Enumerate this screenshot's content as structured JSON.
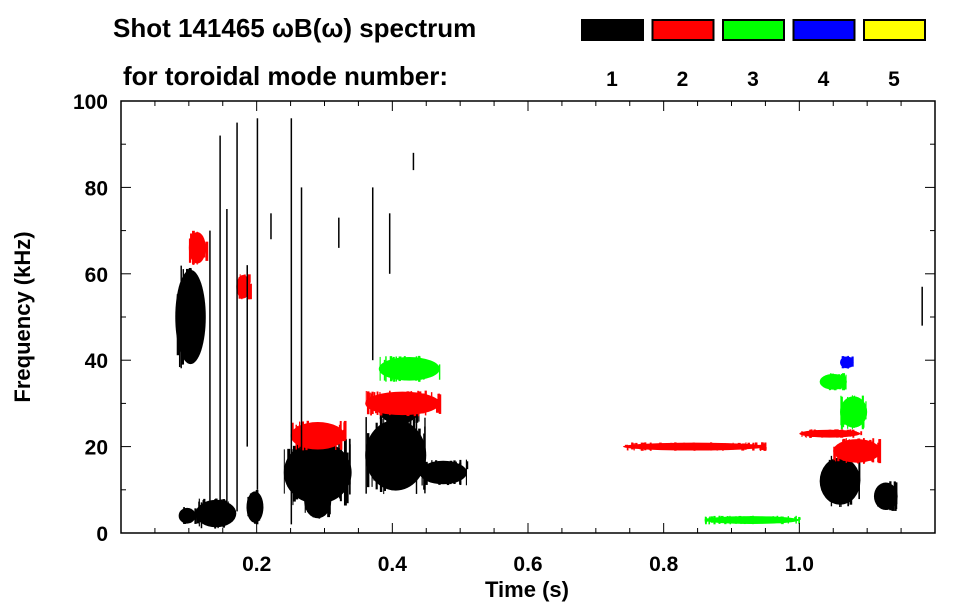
{
  "chart_data": {
    "type": "heatmap",
    "title_line1": "Shot 141465 ωB(ω) spectrum",
    "title_line2": "for toroidal mode number:",
    "xlabel": "Time (s)",
    "ylabel": "Frequency (kHz)",
    "xlim": [
      0,
      1.2
    ],
    "ylim": [
      0,
      100
    ],
    "xticks": [
      0.2,
      0.4,
      0.6,
      0.8,
      1.0
    ],
    "xtick_labels": [
      "0.2",
      "0.4",
      "0.6",
      "0.8",
      "1.0"
    ],
    "yticks": [
      0,
      20,
      40,
      60,
      80,
      100
    ],
    "ytick_labels": [
      "0",
      "20",
      "40",
      "60",
      "80",
      "100"
    ],
    "legend": [
      {
        "label": "1",
        "color": "#000000"
      },
      {
        "label": "2",
        "color": "#ff0000"
      },
      {
        "label": "3",
        "color": "#00ff00"
      },
      {
        "label": "4",
        "color": "#0000ff"
      },
      {
        "label": "5",
        "color": "#ffff00"
      }
    ],
    "regions": [
      {
        "mode": 1,
        "t0": 0.08,
        "t1": 0.125,
        "f0": 38,
        "f1": 62
      },
      {
        "mode": 1,
        "t0": 0.085,
        "t1": 0.11,
        "f0": 2,
        "f1": 6
      },
      {
        "mode": 1,
        "t0": 0.11,
        "t1": 0.17,
        "f0": 1,
        "f1": 8
      },
      {
        "mode": 1,
        "t0": 0.185,
        "t1": 0.21,
        "f0": 2,
        "f1": 10
      },
      {
        "mode": 1,
        "t0": 0.24,
        "t1": 0.34,
        "f0": 6,
        "f1": 22
      },
      {
        "mode": 1,
        "t0": 0.27,
        "t1": 0.31,
        "f0": 3,
        "f1": 12
      },
      {
        "mode": 1,
        "t0": 0.36,
        "t1": 0.45,
        "f0": 9,
        "f1": 27
      },
      {
        "mode": 1,
        "t0": 0.44,
        "t1": 0.51,
        "f0": 11,
        "f1": 17
      },
      {
        "mode": 1,
        "t0": 0.38,
        "t1": 0.44,
        "f0": 25,
        "f1": 32
      },
      {
        "mode": 1,
        "t0": 1.03,
        "t1": 1.09,
        "f0": 6,
        "f1": 18
      },
      {
        "mode": 1,
        "t0": 1.11,
        "t1": 1.145,
        "f0": 5,
        "f1": 12
      },
      {
        "mode": 2,
        "t0": 0.1,
        "t1": 0.125,
        "f0": 62,
        "f1": 70
      },
      {
        "mode": 2,
        "t0": 0.17,
        "t1": 0.19,
        "f0": 54,
        "f1": 60
      },
      {
        "mode": 2,
        "t0": 0.25,
        "t1": 0.33,
        "f0": 19,
        "f1": 26
      },
      {
        "mode": 2,
        "t0": 0.36,
        "t1": 0.47,
        "f0": 27,
        "f1": 33
      },
      {
        "mode": 2,
        "t0": 0.74,
        "t1": 0.95,
        "f0": 19,
        "f1": 21
      },
      {
        "mode": 2,
        "t0": 1.0,
        "t1": 1.09,
        "f0": 22,
        "f1": 24
      },
      {
        "mode": 2,
        "t0": 1.05,
        "t1": 1.12,
        "f0": 16,
        "f1": 22
      },
      {
        "mode": 3,
        "t0": 0.86,
        "t1": 1.0,
        "f0": 2,
        "f1": 4
      },
      {
        "mode": 3,
        "t0": 1.03,
        "t1": 1.07,
        "f0": 33,
        "f1": 37
      },
      {
        "mode": 3,
        "t0": 1.06,
        "t1": 1.1,
        "f0": 24,
        "f1": 32
      },
      {
        "mode": 3,
        "t0": 0.38,
        "t1": 0.47,
        "f0": 35,
        "f1": 41
      },
      {
        "mode": 4,
        "t0": 1.06,
        "t1": 1.08,
        "f0": 38,
        "f1": 41
      }
    ],
    "streaks": [
      {
        "mode": 1,
        "t": 0.13,
        "f0": 5,
        "f1": 70
      },
      {
        "mode": 1,
        "t": 0.145,
        "f0": 5,
        "f1": 92
      },
      {
        "mode": 1,
        "t": 0.155,
        "f0": 5,
        "f1": 75
      },
      {
        "mode": 1,
        "t": 0.17,
        "f0": 5,
        "f1": 95
      },
      {
        "mode": 1,
        "t": 0.185,
        "f0": 20,
        "f1": 62
      },
      {
        "mode": 1,
        "t": 0.2,
        "f0": 10,
        "f1": 96
      },
      {
        "mode": 1,
        "t": 0.25,
        "f0": 2,
        "f1": 96
      },
      {
        "mode": 1,
        "t": 0.265,
        "f0": 10,
        "f1": 80
      },
      {
        "mode": 1,
        "t": 0.32,
        "f0": 66,
        "f1": 73
      },
      {
        "mode": 1,
        "t": 0.37,
        "f0": 40,
        "f1": 80
      },
      {
        "mode": 1,
        "t": 0.395,
        "f0": 60,
        "f1": 74
      },
      {
        "mode": 1,
        "t": 0.43,
        "f0": 84,
        "f1": 88
      },
      {
        "mode": 1,
        "t": 0.22,
        "f0": 68,
        "f1": 74
      },
      {
        "mode": 1,
        "t": 1.18,
        "f0": 48,
        "f1": 57
      }
    ]
  }
}
